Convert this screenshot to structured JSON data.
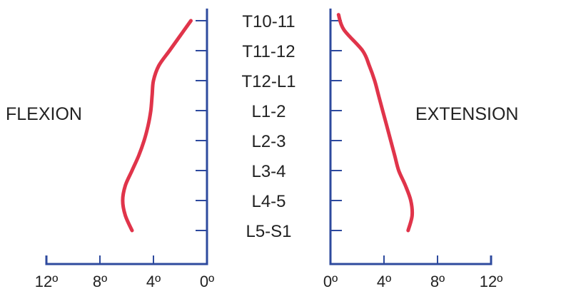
{
  "colors": {
    "axis": "#2e4a9e",
    "curve": "#e0344a",
    "text": "#222222"
  },
  "chart_data": {
    "type": "line",
    "orientation": "horizontal-values-vertical-categories",
    "levels": [
      "T10-11",
      "T11-12",
      "T12-L1",
      "L1-2",
      "L2-3",
      "L3-4",
      "L4-5",
      "L5-S1"
    ],
    "panels": [
      {
        "title": "FLEXION",
        "x_ticks": [
          "12º",
          "8º",
          "4º",
          "0º"
        ],
        "x_tick_values": [
          12,
          8,
          4,
          0
        ],
        "xlim": [
          12,
          0
        ],
        "points": [
          {
            "level": 0,
            "value": 1.2
          },
          {
            "level": 0.5,
            "value": 2.0
          },
          {
            "level": 1,
            "value": 2.8
          },
          {
            "level": 1.5,
            "value": 3.6
          },
          {
            "level": 2,
            "value": 4.0
          },
          {
            "level": 2.5,
            "value": 4.1
          },
          {
            "level": 3,
            "value": 4.2
          },
          {
            "level": 3.5,
            "value": 4.4
          },
          {
            "level": 4,
            "value": 4.7
          },
          {
            "level": 4.5,
            "value": 5.1
          },
          {
            "level": 5,
            "value": 5.6
          },
          {
            "level": 5.5,
            "value": 6.1
          },
          {
            "level": 6,
            "value": 6.3
          },
          {
            "level": 6.5,
            "value": 6.1
          },
          {
            "level": 7,
            "value": 5.6
          }
        ]
      },
      {
        "title": "EXTENSION",
        "x_ticks": [
          "0º",
          "4º",
          "8º",
          "12º"
        ],
        "x_tick_values": [
          0,
          4,
          8,
          12
        ],
        "xlim": [
          0,
          12
        ],
        "points": [
          {
            "level": -0.2,
            "value": 0.6
          },
          {
            "level": 0.3,
            "value": 1.0
          },
          {
            "level": 1,
            "value": 2.4
          },
          {
            "level": 1.5,
            "value": 2.9
          },
          {
            "level": 2,
            "value": 3.3
          },
          {
            "level": 2.5,
            "value": 3.6
          },
          {
            "level": 3,
            "value": 3.9
          },
          {
            "level": 3.5,
            "value": 4.2
          },
          {
            "level": 4,
            "value": 4.5
          },
          {
            "level": 4.5,
            "value": 4.8
          },
          {
            "level": 5,
            "value": 5.1
          },
          {
            "level": 5.5,
            "value": 5.6
          },
          {
            "level": 6,
            "value": 6.0
          },
          {
            "level": 6.5,
            "value": 6.1
          },
          {
            "level": 7,
            "value": 5.8
          }
        ]
      }
    ]
  }
}
